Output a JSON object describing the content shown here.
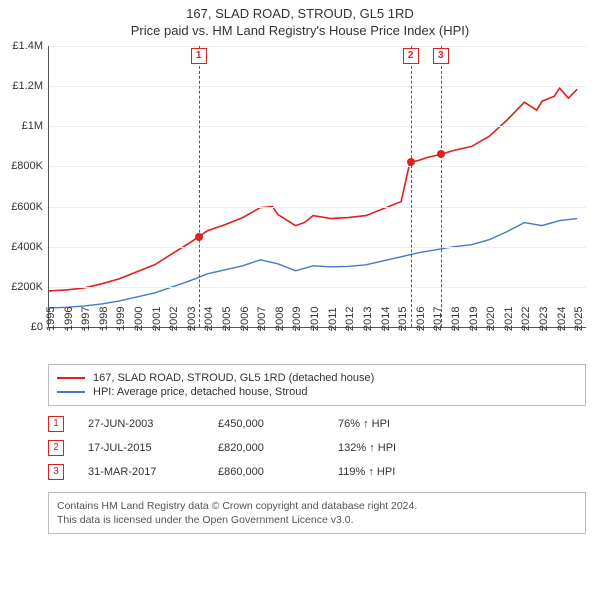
{
  "title": {
    "main": "167, SLAD ROAD, STROUD, GL5 1RD",
    "sub": "Price paid vs. HM Land Registry's House Price Index (HPI)"
  },
  "chart": {
    "type": "line",
    "background_color": "#ffffff",
    "grid_color": "#eeeeee",
    "axis_color": "#555555",
    "label_fontsize": 11,
    "x": {
      "min": 1995,
      "max": 2025.5,
      "ticks": [
        1995,
        1996,
        1997,
        1998,
        1999,
        2000,
        2001,
        2002,
        2003,
        2004,
        2005,
        2006,
        2007,
        2008,
        2009,
        2010,
        2011,
        2012,
        2013,
        2014,
        2015,
        2016,
        2017,
        2018,
        2019,
        2020,
        2021,
        2022,
        2023,
        2024,
        2025
      ]
    },
    "y": {
      "min": 0,
      "max": 1400000,
      "ticks": [
        {
          "v": 0,
          "label": "£0"
        },
        {
          "v": 200000,
          "label": "£200K"
        },
        {
          "v": 400000,
          "label": "£400K"
        },
        {
          "v": 600000,
          "label": "£600K"
        },
        {
          "v": 800000,
          "label": "£800K"
        },
        {
          "v": 1000000,
          "label": "£1M"
        },
        {
          "v": 1200000,
          "label": "£1.2M"
        },
        {
          "v": 1400000,
          "label": "£1.4M"
        }
      ]
    },
    "series": [
      {
        "name": "167, SLAD ROAD, STROUD, GL5 1RD (detached house)",
        "color": "#e02020",
        "width": 1.6,
        "points": [
          [
            1995,
            180000
          ],
          [
            1996,
            185000
          ],
          [
            1997,
            195000
          ],
          [
            1998,
            215000
          ],
          [
            1999,
            240000
          ],
          [
            2000,
            275000
          ],
          [
            2001,
            310000
          ],
          [
            2002,
            365000
          ],
          [
            2003,
            420000
          ],
          [
            2003.5,
            450000
          ],
          [
            2004,
            480000
          ],
          [
            2005,
            510000
          ],
          [
            2006,
            545000
          ],
          [
            2007,
            595000
          ],
          [
            2007.7,
            600000
          ],
          [
            2008,
            560000
          ],
          [
            2009,
            505000
          ],
          [
            2009.5,
            520000
          ],
          [
            2010,
            555000
          ],
          [
            2011,
            540000
          ],
          [
            2012,
            545000
          ],
          [
            2013,
            555000
          ],
          [
            2014,
            590000
          ],
          [
            2015,
            625000
          ],
          [
            2015.5,
            820000
          ],
          [
            2016,
            830000
          ],
          [
            2016.5,
            845000
          ],
          [
            2017.25,
            860000
          ],
          [
            2018,
            880000
          ],
          [
            2019,
            900000
          ],
          [
            2020,
            950000
          ],
          [
            2021,
            1030000
          ],
          [
            2022,
            1120000
          ],
          [
            2022.7,
            1080000
          ],
          [
            2023,
            1125000
          ],
          [
            2023.7,
            1150000
          ],
          [
            2024,
            1190000
          ],
          [
            2024.5,
            1140000
          ],
          [
            2025,
            1185000
          ]
        ]
      },
      {
        "name": "HPI: Average price, detached house, Stroud",
        "color": "#4a78c8",
        "width": 1.4,
        "points": [
          [
            1995,
            95000
          ],
          [
            1996,
            98000
          ],
          [
            1997,
            105000
          ],
          [
            1998,
            115000
          ],
          [
            1999,
            130000
          ],
          [
            2000,
            150000
          ],
          [
            2001,
            170000
          ],
          [
            2002,
            200000
          ],
          [
            2003,
            230000
          ],
          [
            2004,
            265000
          ],
          [
            2005,
            285000
          ],
          [
            2006,
            305000
          ],
          [
            2007,
            335000
          ],
          [
            2008,
            315000
          ],
          [
            2009,
            280000
          ],
          [
            2010,
            305000
          ],
          [
            2011,
            300000
          ],
          [
            2012,
            302000
          ],
          [
            2013,
            310000
          ],
          [
            2014,
            330000
          ],
          [
            2015,
            350000
          ],
          [
            2016,
            370000
          ],
          [
            2017,
            385000
          ],
          [
            2018,
            400000
          ],
          [
            2019,
            410000
          ],
          [
            2020,
            435000
          ],
          [
            2021,
            475000
          ],
          [
            2022,
            520000
          ],
          [
            2023,
            505000
          ],
          [
            2024,
            530000
          ],
          [
            2025,
            540000
          ]
        ]
      }
    ],
    "sale_markers": [
      {
        "n": "1",
        "x": 2003.5,
        "y": 450000
      },
      {
        "n": "2",
        "x": 2015.54,
        "y": 820000
      },
      {
        "n": "3",
        "x": 2017.25,
        "y": 860000
      }
    ]
  },
  "legend": {
    "items": [
      {
        "color": "#e02020",
        "label": "167, SLAD ROAD, STROUD, GL5 1RD (detached house)"
      },
      {
        "color": "#4a78c8",
        "label": "HPI: Average price, detached house, Stroud"
      }
    ]
  },
  "events": [
    {
      "n": "1",
      "date": "27-JUN-2003",
      "price": "£450,000",
      "pct": "76% ↑ HPI"
    },
    {
      "n": "2",
      "date": "17-JUL-2015",
      "price": "£820,000",
      "pct": "132% ↑ HPI"
    },
    {
      "n": "3",
      "date": "31-MAR-2017",
      "price": "£860,000",
      "pct": "119% ↑ HPI"
    }
  ],
  "footer": {
    "line1": "Contains HM Land Registry data © Crown copyright and database right 2024.",
    "line2": "This data is licensed under the Open Government Licence v3.0."
  }
}
